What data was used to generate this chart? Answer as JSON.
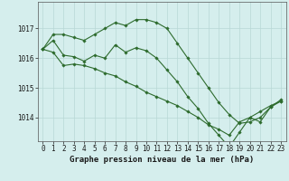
{
  "xlabel": "Graphe pression niveau de la mer (hPa)",
  "background_color": "#d5eeed",
  "grid_color": "#b8d8d6",
  "line_color": "#2d6b2d",
  "marker": "D",
  "markersize": 1.8,
  "linewidth": 0.8,
  "x": [
    0,
    1,
    2,
    3,
    4,
    5,
    6,
    7,
    8,
    9,
    10,
    11,
    12,
    13,
    14,
    15,
    16,
    17,
    18,
    19,
    20,
    21,
    22,
    23
  ],
  "series": [
    [
      1016.3,
      1016.8,
      1016.8,
      1016.7,
      1016.6,
      1016.8,
      1017.0,
      1017.2,
      1017.1,
      1017.3,
      1017.3,
      1017.2,
      1017.0,
      1016.5,
      1016.0,
      1015.5,
      1015.0,
      1014.5,
      1014.1,
      1013.8,
      1013.85,
      1014.0,
      1014.35,
      1014.6
    ],
    [
      1016.3,
      1016.6,
      1016.1,
      1016.05,
      1015.9,
      1016.1,
      1016.0,
      1016.45,
      1016.2,
      1016.35,
      1016.25,
      1016.0,
      1015.6,
      1015.2,
      1014.7,
      1014.3,
      1013.8,
      1013.4,
      1013.0,
      1013.5,
      1014.0,
      1013.85,
      1014.35,
      1014.55
    ],
    [
      1016.3,
      1016.2,
      1015.75,
      1015.8,
      1015.75,
      1015.65,
      1015.5,
      1015.4,
      1015.2,
      1015.05,
      1014.85,
      1014.7,
      1014.55,
      1014.4,
      1014.2,
      1014.0,
      1013.75,
      1013.6,
      1013.4,
      1013.85,
      1014.0,
      1014.2,
      1014.4,
      1014.55
    ]
  ],
  "ylim": [
    1013.2,
    1017.9
  ],
  "yticks": [
    1014,
    1015,
    1016,
    1017
  ],
  "xticks": [
    0,
    1,
    2,
    3,
    4,
    5,
    6,
    7,
    8,
    9,
    10,
    11,
    12,
    13,
    14,
    15,
    16,
    17,
    18,
    19,
    20,
    21,
    22,
    23
  ],
  "xlabel_fontsize": 6.5,
  "tick_fontsize": 5.5
}
